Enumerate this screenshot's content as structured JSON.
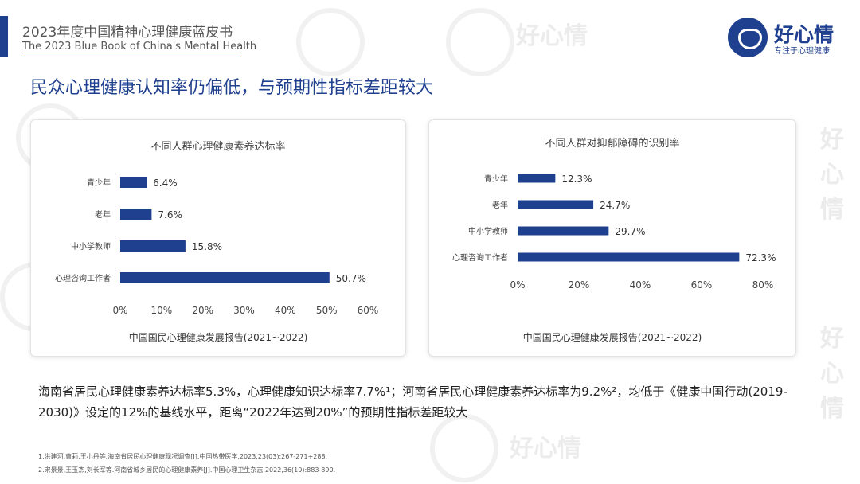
{
  "header": {
    "title_cn": "2023年度中国精神心理健康蓝皮书",
    "title_en": "The 2023 Blue Book of China's Mental Health"
  },
  "logo": {
    "name": "好心情",
    "tagline": "专注于心理健康",
    "icon": "heart-in-circle-icon"
  },
  "watermark": "好心情",
  "slide": {
    "title": "民众心理健康认知率仍偏低，与预期性指标差距较大"
  },
  "colors": {
    "accent": "#1f3f8f",
    "bar": "#1f3f8f"
  },
  "chart_data": [
    {
      "type": "bar",
      "orientation": "horizontal",
      "title": "不同人群心理健康素养达标率",
      "categories": [
        "青少年",
        "老年",
        "中小学教师",
        "心理咨询工作者"
      ],
      "values": [
        6.4,
        7.6,
        15.8,
        50.7
      ],
      "value_labels": [
        "6.4%",
        "7.6%",
        "15.8%",
        "50.7%"
      ],
      "xlim": [
        0,
        60
      ],
      "xticks": [
        "0%",
        "10%",
        "20%",
        "30%",
        "40%",
        "50%",
        "60%"
      ],
      "xlabel": "中国国民心理健康发展报告(2021~2022)",
      "grid": false
    },
    {
      "type": "bar",
      "orientation": "horizontal",
      "title": "不同人群对抑郁障碍的识别率",
      "categories": [
        "青少年",
        "老年",
        "中小学教师",
        "心理咨询工作者"
      ],
      "values": [
        12.3,
        24.7,
        29.7,
        72.3
      ],
      "value_labels": [
        "12.3%",
        "24.7%",
        "29.7%",
        "72.3%"
      ],
      "xlim": [
        0,
        80
      ],
      "xticks": [
        "0%",
        "20%",
        "40%",
        "60%",
        "80%"
      ],
      "xlabel": "中国国民心理健康发展报告(2021~2022)",
      "grid": false
    }
  ],
  "summary": {
    "line1": "海南省居民心理健康素养达标率5.3%，心理健康知识达标率7.7%¹；河南省居民心理健康素养达标率为9.2%²，均低于《健康中国行动(2019-",
    "line2": "2030)》设定的12%的基线水平，距离“2022年达到20%”的预期性指标差距较大"
  },
  "references": [
    "1.洪建河,曹莉,王小丹等.海南省居民心理健康现况调查[J].中国热带医学,2023,23(03):267-271+288.",
    "2.宋景景,王玉杰,刘长军等.河南省城乡居民的心理健康素养[J].中国心理卫生杂志,2022,36(10):883-890."
  ]
}
